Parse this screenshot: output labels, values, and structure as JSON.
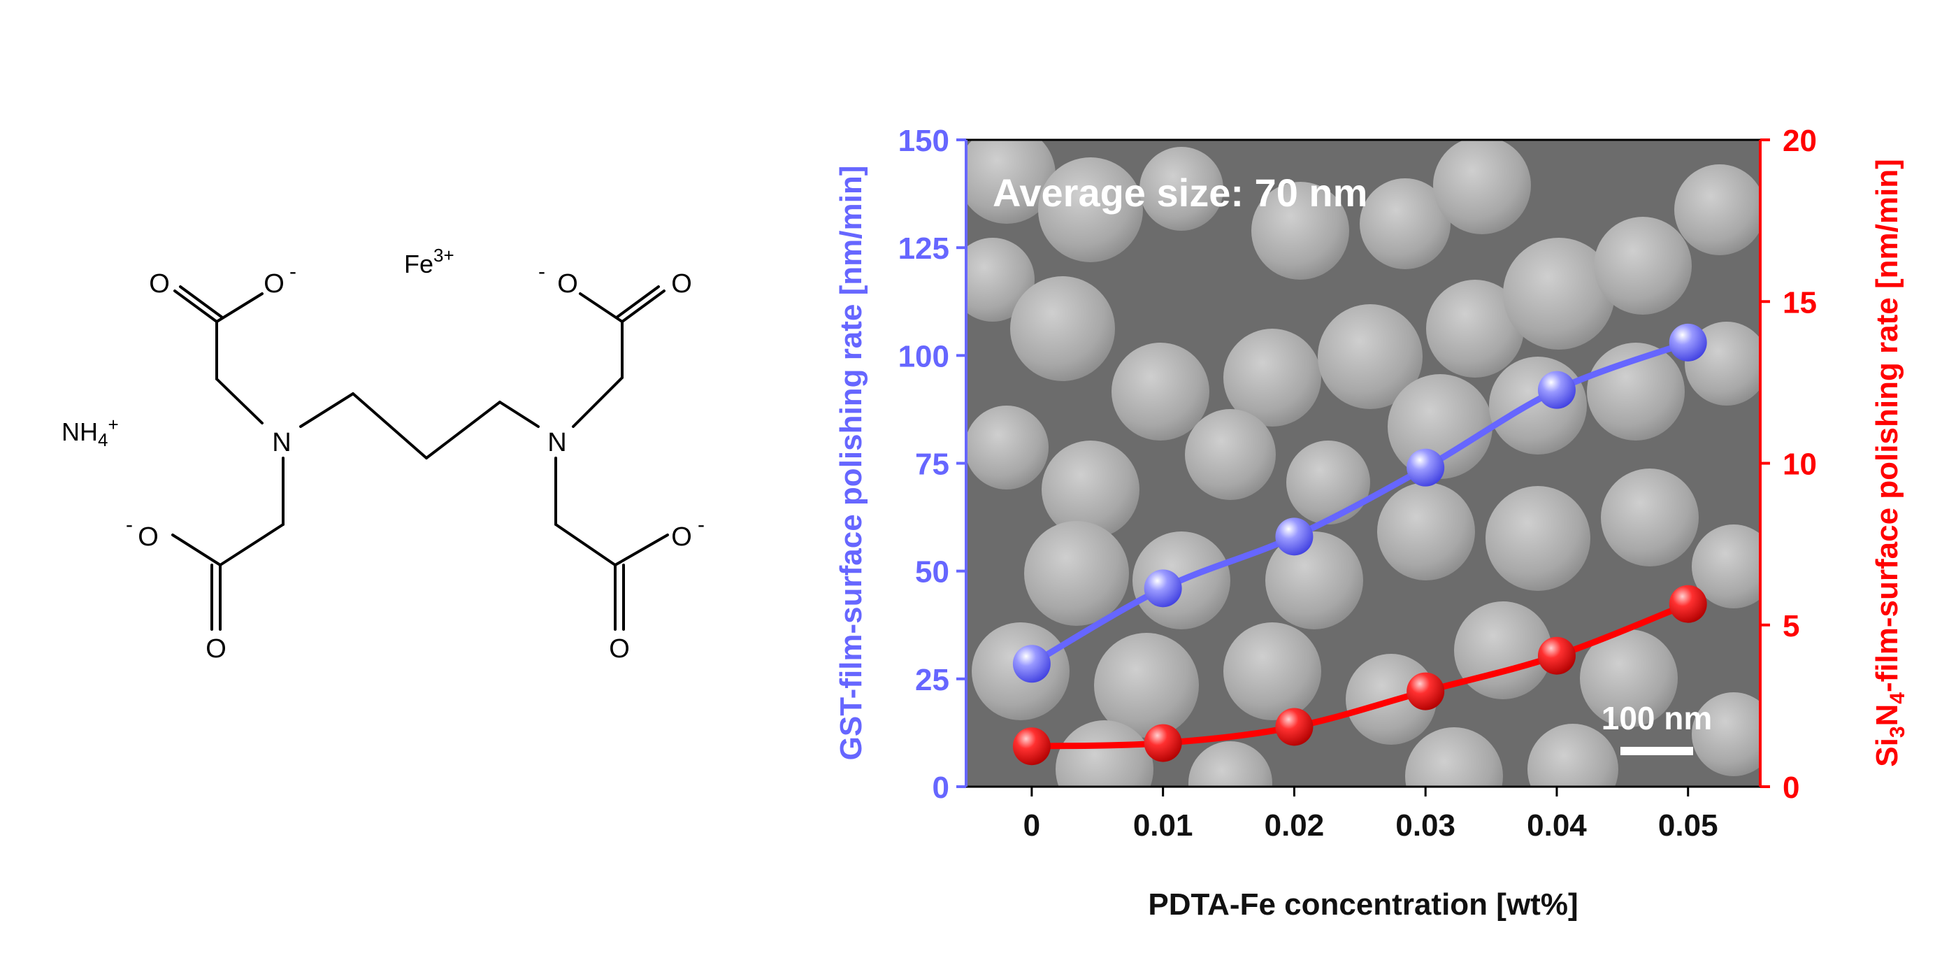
{
  "molecule": {
    "labels": {
      "cation": "NH4+",
      "metal": "Fe3+",
      "n_left": "N",
      "n_right": "N",
      "o_tl_dbl": "O",
      "o_tl_neg": "O",
      "o_bl_neg": "O",
      "o_bl_dbl": "O",
      "o_tr_neg": "O",
      "o_tr_dbl": "O",
      "o_br_neg": "O",
      "o_br_dbl": "O",
      "neg": "-"
    }
  },
  "chart_data": {
    "type": "line",
    "background": "SEM micrograph of spherical particles",
    "annotation": "Average size: 70 nm",
    "scale_bar_label": "100 nm",
    "xlabel": "PDTA-Fe concentration [wt%]",
    "ylabel_left": "GST-film-surface polishing rate [nm/min]",
    "ylabel_right": "Si3N4-film-surface polishing rate [nm/min]",
    "x_tick_labels": [
      "0",
      "0.01",
      "0.02",
      "0.03",
      "0.04",
      "0.05"
    ],
    "x": [
      0,
      0.01,
      0.02,
      0.03,
      0.04,
      0.05
    ],
    "xlim": [
      -0.005,
      0.0555
    ],
    "ylim_left": [
      0,
      150
    ],
    "ylim_right": [
      0,
      20
    ],
    "y_ticks_left": [
      0,
      25,
      50,
      75,
      100,
      125,
      150
    ],
    "y_ticks_right": [
      0,
      5,
      10,
      15,
      20
    ],
    "series": [
      {
        "axis": "left",
        "color": "#6666ff",
        "values": [
          28.5,
          46,
          58,
          74,
          92,
          103
        ]
      },
      {
        "axis": "right",
        "color": "#ff0000",
        "values": [
          1.25,
          1.35,
          1.85,
          2.95,
          4.05,
          5.65
        ]
      }
    ],
    "colors": {
      "left_axis": "#6666ff",
      "right_axis": "#ff0000"
    }
  }
}
